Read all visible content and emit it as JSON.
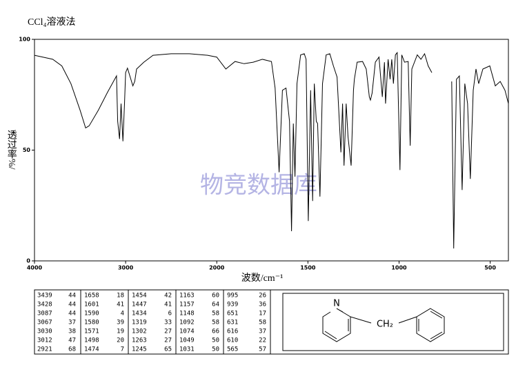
{
  "chart_data": {
    "type": "line",
    "title": "CCl₄溶液法",
    "xlabel": "波数/cm⁻¹",
    "ylabel": "透过率%/",
    "watermark": "物竞数据库",
    "color": "#000000",
    "xlim": [
      4000,
      400
    ],
    "xscale": {
      "break": 2000,
      "ratio": 2
    },
    "xticks": [
      4000,
      3000,
      2000,
      1500,
      1000,
      500
    ],
    "ylim": [
      0,
      100
    ],
    "yticks": [
      0,
      50,
      100
    ],
    "x": [
      4000,
      3800,
      3700,
      3600,
      3500,
      3439,
      3400,
      3300,
      3200,
      3100,
      3087,
      3067,
      3050,
      3030,
      3012,
      3000,
      2980,
      2921,
      2900,
      2880,
      2800,
      2700,
      2500,
      2300,
      2100,
      2000,
      1950,
      1900,
      1850,
      1800,
      1750,
      1700,
      1680,
      1658,
      1640,
      1620,
      1601,
      1590,
      1580,
      1571,
      1560,
      1540,
      1520,
      1510,
      1498,
      1485,
      1474,
      1465,
      1454,
      1447,
      1434,
      1420,
      1400,
      1380,
      1360,
      1340,
      1319,
      1310,
      1302,
      1290,
      1280,
      1263,
      1250,
      1245,
      1230,
      1200,
      1180,
      1163,
      1157,
      1148,
      1130,
      1110,
      1092,
      1080,
      1074,
      1060,
      1049,
      1040,
      1031,
      1020,
      1010,
      995,
      985,
      970,
      950,
      939,
      930,
      900,
      880,
      860,
      840,
      820,
      770,
      711,
      700,
      685,
      669,
      654,
      639,
      624,
      609,
      593,
      578,
      563,
      540,
      502,
      472,
      445,
      419,
      400
    ],
    "values": [
      92.8,
      91,
      88,
      80,
      68,
      60,
      61,
      68,
      76,
      83.5,
      63,
      55,
      71,
      54,
      71,
      85,
      87,
      79,
      81,
      86.6,
      89.7,
      92.8,
      93.5,
      93.5,
      92.8,
      92,
      86.6,
      90,
      89,
      89.7,
      91,
      90,
      78,
      40,
      77,
      78,
      63,
      13.4,
      62,
      38,
      80,
      93,
      93.5,
      91,
      18,
      77,
      27,
      80,
      63,
      62,
      29,
      80,
      93,
      93.5,
      88,
      83,
      49,
      71,
      43,
      71,
      56,
      43,
      77,
      82,
      89.7,
      90,
      86.6,
      74,
      72.6,
      75.7,
      89.7,
      92,
      74,
      89.7,
      71,
      91,
      82,
      91,
      80,
      93,
      94,
      41,
      93,
      89.7,
      90,
      52,
      86.6,
      93,
      91,
      93.5,
      88,
      85,
      null,
      81,
      5.6,
      82,
      83.5,
      32,
      80,
      71,
      37,
      77,
      86.6,
      80,
      86.6,
      88,
      79,
      81,
      77,
      71
    ]
  },
  "peak_table": [
    [
      [
        3439,
        44
      ],
      [
        3428,
        44
      ],
      [
        3087,
        44
      ],
      [
        3067,
        37
      ],
      [
        3030,
        38
      ],
      [
        3012,
        47
      ],
      [
        2921,
        68
      ]
    ],
    [
      [
        1658,
        18
      ],
      [
        1601,
        41
      ],
      [
        1590,
        4
      ],
      [
        1580,
        39
      ],
      [
        1571,
        19
      ],
      [
        1498,
        20
      ],
      [
        1474,
        7
      ]
    ],
    [
      [
        1454,
        42
      ],
      [
        1447,
        41
      ],
      [
        1434,
        6
      ],
      [
        1319,
        33
      ],
      [
        1302,
        27
      ],
      [
        1263,
        27
      ],
      [
        1245,
        65
      ]
    ],
    [
      [
        1163,
        60
      ],
      [
        1157,
        64
      ],
      [
        1148,
        58
      ],
      [
        1092,
        58
      ],
      [
        1074,
        66
      ],
      [
        1049,
        50
      ],
      [
        1031,
        50
      ]
    ],
    [
      [
        995,
        26
      ],
      [
        939,
        36
      ],
      [
        651,
        17
      ],
      [
        631,
        58
      ],
      [
        616,
        37
      ],
      [
        610,
        22
      ],
      [
        565,
        57
      ]
    ]
  ],
  "structure": {
    "atoms": [
      "N",
      "CH₂"
    ]
  }
}
